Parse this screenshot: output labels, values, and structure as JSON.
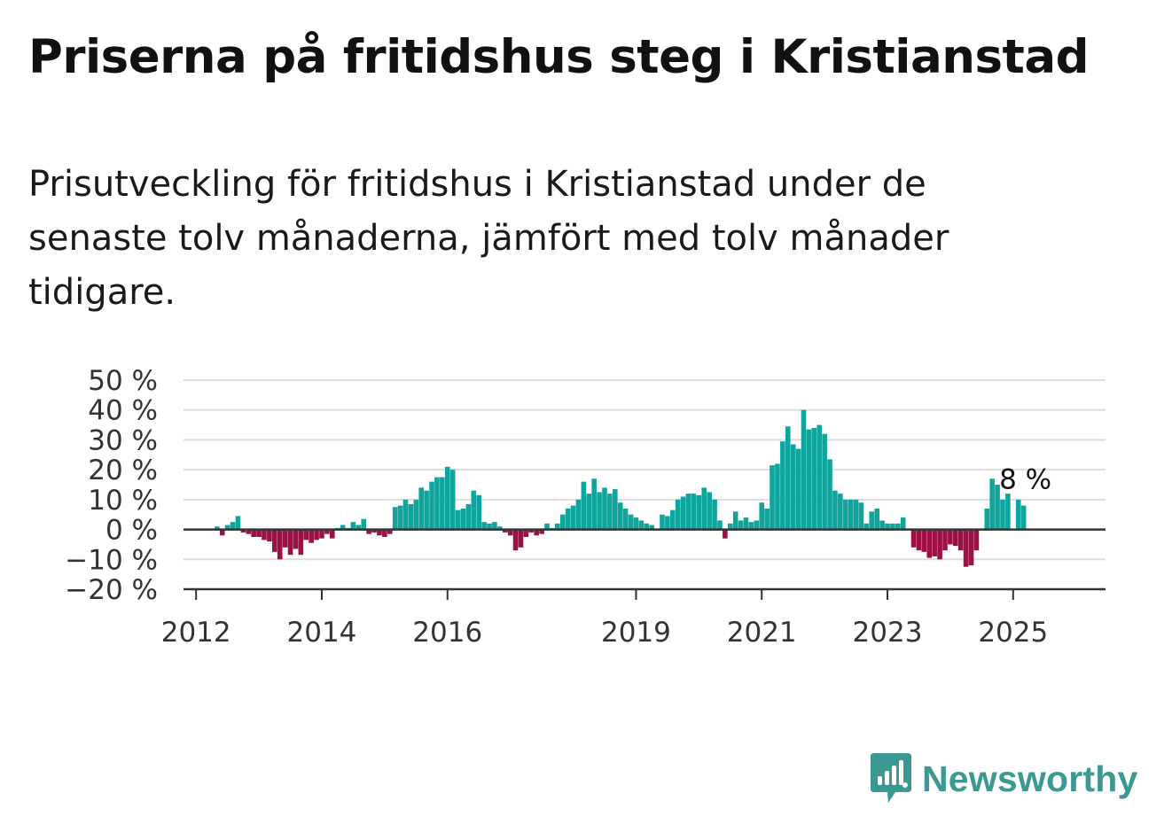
{
  "header": {
    "title": "Priserna på fritidshus steg i Kristianstad",
    "subtitle": "Prisutveckling för fritidshus i Kristianstad under de senaste tolv månaderna, jämfört med tolv månader tidigare."
  },
  "logo": {
    "text": "Newsworthy",
    "icon": "newsworthy-chart-bubble-icon"
  },
  "colors": {
    "positive": "#0fa59c",
    "negative": "#9e0f45",
    "grid": "#dddddd",
    "axis": "#333333",
    "logo": "#3a9a93"
  },
  "chart_data": {
    "type": "bar",
    "title": "Priserna på fritidshus steg i Kristianstad",
    "ylim": [
      -20,
      50
    ],
    "y_ticks": [
      -20,
      -10,
      0,
      10,
      20,
      30,
      40,
      50
    ],
    "y_tick_labels": [
      "−20 %",
      "−10 %",
      "0 %",
      "10 %",
      "20 %",
      "30 %",
      "40 %",
      "50 %"
    ],
    "x_ticks": [
      2012,
      2014,
      2016,
      2019,
      2021,
      2023,
      2025
    ],
    "x_tick_labels": [
      "2012",
      "2014",
      "2016",
      "2019",
      "2021",
      "2023",
      "2025"
    ],
    "grid": true,
    "annotation": {
      "text": "8 %",
      "date": "2025-03",
      "value": 8
    },
    "series": [
      {
        "values": [
          {
            "date": "2012-05",
            "value": 1.0
          },
          {
            "date": "2012-06",
            "value": -2.0
          },
          {
            "date": "2012-07",
            "value": 1.5
          },
          {
            "date": "2012-08",
            "value": 2.5
          },
          {
            "date": "2012-09",
            "value": 4.5
          },
          {
            "date": "2012-10",
            "value": -1.0
          },
          {
            "date": "2012-11",
            "value": -1.5
          },
          {
            "date": "2012-12",
            "value": -2.5
          },
          {
            "date": "2013-01",
            "value": -2.5
          },
          {
            "date": "2013-02",
            "value": -3.5
          },
          {
            "date": "2013-03",
            "value": -4.0
          },
          {
            "date": "2013-04",
            "value": -7.5
          },
          {
            "date": "2013-05",
            "value": -10.0
          },
          {
            "date": "2013-06",
            "value": -6.0
          },
          {
            "date": "2013-07",
            "value": -8.5
          },
          {
            "date": "2013-08",
            "value": -6.5
          },
          {
            "date": "2013-09",
            "value": -8.5
          },
          {
            "date": "2013-10",
            "value": -3.5
          },
          {
            "date": "2013-11",
            "value": -4.5
          },
          {
            "date": "2013-12",
            "value": -3.5
          },
          {
            "date": "2014-01",
            "value": -3.0
          },
          {
            "date": "2014-02",
            "value": -1.5
          },
          {
            "date": "2014-03",
            "value": -3.0
          },
          {
            "date": "2014-04",
            "value": 0.5
          },
          {
            "date": "2014-05",
            "value": 1.5
          },
          {
            "date": "2014-06",
            "value": 0.5
          },
          {
            "date": "2014-07",
            "value": 2.5
          },
          {
            "date": "2014-08",
            "value": 1.5
          },
          {
            "date": "2014-09",
            "value": 3.5
          },
          {
            "date": "2014-10",
            "value": -1.5
          },
          {
            "date": "2014-11",
            "value": -1.0
          },
          {
            "date": "2014-12",
            "value": -2.0
          },
          {
            "date": "2015-01",
            "value": -2.5
          },
          {
            "date": "2015-02",
            "value": -1.5
          },
          {
            "date": "2015-03",
            "value": 7.5
          },
          {
            "date": "2015-04",
            "value": 8.0
          },
          {
            "date": "2015-05",
            "value": 10.0
          },
          {
            "date": "2015-06",
            "value": 8.5
          },
          {
            "date": "2015-07",
            "value": 10.0
          },
          {
            "date": "2015-08",
            "value": 14.0
          },
          {
            "date": "2015-09",
            "value": 13.0
          },
          {
            "date": "2015-10",
            "value": 16.0
          },
          {
            "date": "2015-11",
            "value": 17.5
          },
          {
            "date": "2015-12",
            "value": 17.5
          },
          {
            "date": "2016-01",
            "value": 21.0
          },
          {
            "date": "2016-02",
            "value": 20.0
          },
          {
            "date": "2016-03",
            "value": 6.5
          },
          {
            "date": "2016-04",
            "value": 7.0
          },
          {
            "date": "2016-05",
            "value": 8.5
          },
          {
            "date": "2016-06",
            "value": 13.0
          },
          {
            "date": "2016-07",
            "value": 11.5
          },
          {
            "date": "2016-08",
            "value": 2.5
          },
          {
            "date": "2016-09",
            "value": 2.0
          },
          {
            "date": "2016-10",
            "value": 2.5
          },
          {
            "date": "2016-11",
            "value": 1.0
          },
          {
            "date": "2016-12",
            "value": -1.0
          },
          {
            "date": "2017-01",
            "value": -2.0
          },
          {
            "date": "2017-02",
            "value": -7.0
          },
          {
            "date": "2017-03",
            "value": -6.0
          },
          {
            "date": "2017-04",
            "value": -2.5
          },
          {
            "date": "2017-05",
            "value": -1.0
          },
          {
            "date": "2017-06",
            "value": -2.0
          },
          {
            "date": "2017-07",
            "value": -1.5
          },
          {
            "date": "2017-08",
            "value": 2.0
          },
          {
            "date": "2017-09",
            "value": 0.5
          },
          {
            "date": "2017-10",
            "value": 2.0
          },
          {
            "date": "2017-11",
            "value": 5.0
          },
          {
            "date": "2017-12",
            "value": 7.0
          },
          {
            "date": "2018-01",
            "value": 8.0
          },
          {
            "date": "2018-02",
            "value": 10.0
          },
          {
            "date": "2018-03",
            "value": 16.0
          },
          {
            "date": "2018-04",
            "value": 12.0
          },
          {
            "date": "2018-05",
            "value": 17.0
          },
          {
            "date": "2018-06",
            "value": 12.5
          },
          {
            "date": "2018-07",
            "value": 14.0
          },
          {
            "date": "2018-08",
            "value": 12.0
          },
          {
            "date": "2018-09",
            "value": 13.5
          },
          {
            "date": "2018-10",
            "value": 9.0
          },
          {
            "date": "2018-11",
            "value": 7.0
          },
          {
            "date": "2018-12",
            "value": 5.0
          },
          {
            "date": "2019-01",
            "value": 4.0
          },
          {
            "date": "2019-02",
            "value": 3.0
          },
          {
            "date": "2019-03",
            "value": 2.0
          },
          {
            "date": "2019-04",
            "value": 1.5
          },
          {
            "date": "2019-05",
            "value": 0.0
          },
          {
            "date": "2019-06",
            "value": 5.0
          },
          {
            "date": "2019-07",
            "value": 4.5
          },
          {
            "date": "2019-08",
            "value": 6.5
          },
          {
            "date": "2019-09",
            "value": 10.0
          },
          {
            "date": "2019-10",
            "value": 11.0
          },
          {
            "date": "2019-11",
            "value": 12.0
          },
          {
            "date": "2019-12",
            "value": 12.0
          },
          {
            "date": "2020-01",
            "value": 11.5
          },
          {
            "date": "2020-02",
            "value": 14.0
          },
          {
            "date": "2020-03",
            "value": 12.5
          },
          {
            "date": "2020-04",
            "value": 10.0
          },
          {
            "date": "2020-05",
            "value": 3.0
          },
          {
            "date": "2020-06",
            "value": -3.0
          },
          {
            "date": "2020-07",
            "value": 2.0
          },
          {
            "date": "2020-08",
            "value": 6.0
          },
          {
            "date": "2020-09",
            "value": 3.0
          },
          {
            "date": "2020-10",
            "value": 4.0
          },
          {
            "date": "2020-11",
            "value": 2.5
          },
          {
            "date": "2020-12",
            "value": 3.0
          },
          {
            "date": "2021-01",
            "value": 9.0
          },
          {
            "date": "2021-02",
            "value": 7.0
          },
          {
            "date": "2021-03",
            "value": 21.5
          },
          {
            "date": "2021-04",
            "value": 22.0
          },
          {
            "date": "2021-05",
            "value": 29.5
          },
          {
            "date": "2021-06",
            "value": 34.5
          },
          {
            "date": "2021-07",
            "value": 28.5
          },
          {
            "date": "2021-08",
            "value": 27.0
          },
          {
            "date": "2021-09",
            "value": 40.0
          },
          {
            "date": "2021-10",
            "value": 33.5
          },
          {
            "date": "2021-11",
            "value": 34.0
          },
          {
            "date": "2021-12",
            "value": 35.0
          },
          {
            "date": "2022-01",
            "value": 32.0
          },
          {
            "date": "2022-02",
            "value": 23.5
          },
          {
            "date": "2022-03",
            "value": 13.0
          },
          {
            "date": "2022-04",
            "value": 12.0
          },
          {
            "date": "2022-05",
            "value": 10.0
          },
          {
            "date": "2022-06",
            "value": 10.0
          },
          {
            "date": "2022-07",
            "value": 10.0
          },
          {
            "date": "2022-08",
            "value": 9.0
          },
          {
            "date": "2022-09",
            "value": 2.0
          },
          {
            "date": "2022-10",
            "value": 6.0
          },
          {
            "date": "2022-11",
            "value": 7.0
          },
          {
            "date": "2022-12",
            "value": 3.0
          },
          {
            "date": "2023-01",
            "value": 2.0
          },
          {
            "date": "2023-02",
            "value": 2.0
          },
          {
            "date": "2023-03",
            "value": 2.0
          },
          {
            "date": "2023-04",
            "value": 4.0
          },
          {
            "date": "2023-05",
            "value": 0.0
          },
          {
            "date": "2023-06",
            "value": -6.0
          },
          {
            "date": "2023-07",
            "value": -7.0
          },
          {
            "date": "2023-08",
            "value": -7.5
          },
          {
            "date": "2023-09",
            "value": -9.5
          },
          {
            "date": "2023-10",
            "value": -9.0
          },
          {
            "date": "2023-11",
            "value": -10.0
          },
          {
            "date": "2023-12",
            "value": -7.0
          },
          {
            "date": "2024-01",
            "value": -5.0
          },
          {
            "date": "2024-02",
            "value": -5.5
          },
          {
            "date": "2024-03",
            "value": -7.0
          },
          {
            "date": "2024-04",
            "value": -12.5
          },
          {
            "date": "2024-05",
            "value": -12.0
          },
          {
            "date": "2024-06",
            "value": -7.0
          },
          {
            "date": "2024-07",
            "value": 0.0
          },
          {
            "date": "2024-08",
            "value": 7.0
          },
          {
            "date": "2024-09",
            "value": 17.0
          },
          {
            "date": "2024-10",
            "value": 15.0
          },
          {
            "date": "2024-11",
            "value": 10.0
          },
          {
            "date": "2024-12",
            "value": 12.0
          },
          {
            "date": "2025-01",
            "value": 0.0
          },
          {
            "date": "2025-02",
            "value": 10.0
          },
          {
            "date": "2025-03",
            "value": 8.0
          }
        ]
      }
    ]
  }
}
